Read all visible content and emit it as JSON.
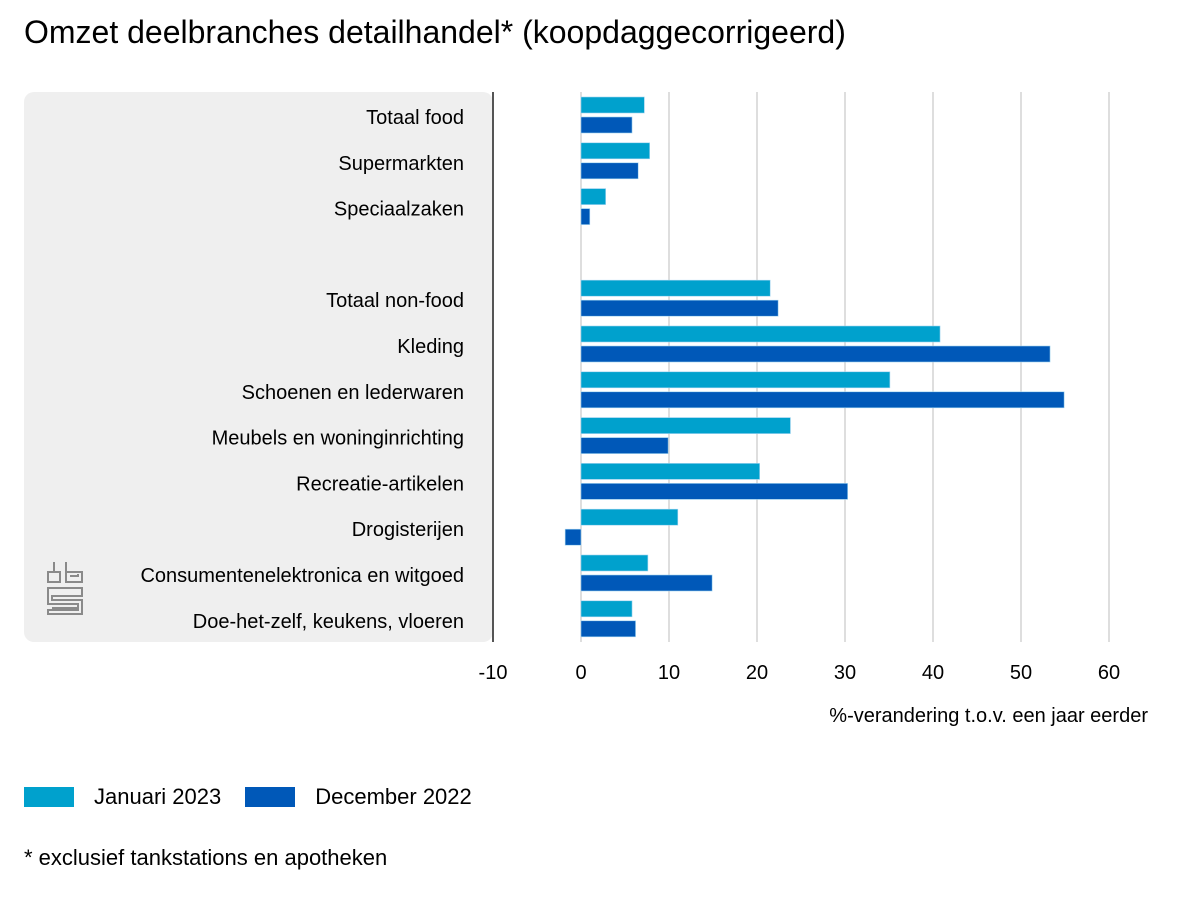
{
  "chart_data": {
    "type": "bar",
    "orientation": "horizontal",
    "title": "Omzet deelbranches detailhandel* (koopdaggecorrigeerd)",
    "xlabel": "%-verandering t.o.v. een jaar eerder",
    "ylabel": "",
    "xlim": [
      -10,
      60
    ],
    "xticks": [
      -10,
      0,
      10,
      20,
      30,
      40,
      50,
      60
    ],
    "grid": true,
    "legend_position": "bottom-left",
    "categories": [
      "Totaal food",
      "Supermarkten",
      "Speciaalzaken",
      "",
      "Totaal non-food",
      "Kleding",
      "Schoenen en lederwaren",
      "Meubels en woninginrichting",
      "Recreatie-artikelen",
      "Drogisterijen",
      "Consumentenelektronica en witgoed",
      "Doe-het-zelf, keukens, vloeren"
    ],
    "series": [
      {
        "name": "Januari 2023",
        "color": "#00a1cd",
        "values": [
          7.2,
          7.8,
          2.8,
          null,
          21.5,
          40.8,
          35.1,
          23.8,
          20.3,
          11.0,
          7.6,
          5.8
        ]
      },
      {
        "name": "December 2022",
        "color": "#0058b8",
        "values": [
          5.8,
          6.5,
          1.0,
          null,
          22.4,
          53.3,
          54.9,
          9.9,
          30.3,
          -1.8,
          14.9,
          6.2
        ]
      }
    ]
  },
  "footnote": "* exclusief tankstations en apotheken",
  "logo": "cbs-logo",
  "colors": {
    "panel": "#efefef",
    "grid": "#c8c8c8",
    "axis": "#555555"
  }
}
